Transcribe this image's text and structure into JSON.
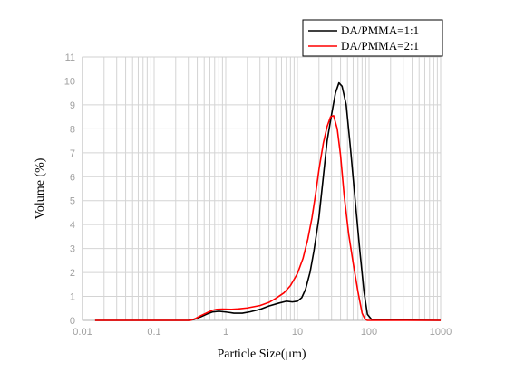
{
  "chart_data": {
    "type": "line",
    "xscale": "log",
    "xlabel": "Particle Size(μm)",
    "ylabel": "Volume (%)",
    "xlim": [
      0.01,
      1000
    ],
    "ylim": [
      0,
      11
    ],
    "grid": true,
    "legend_position": "top-right",
    "x_ticks": [
      0.01,
      0.1,
      1,
      10,
      100,
      1000
    ],
    "x_tick_labels": [
      "0.01",
      "0.1",
      "1",
      "10",
      "100",
      "1000"
    ],
    "y_ticks": [
      0,
      1,
      2,
      3,
      4,
      5,
      6,
      7,
      8,
      9,
      10,
      11
    ],
    "y_tick_labels": [
      "0",
      "1",
      "2",
      "3",
      "4",
      "5",
      "6",
      "7",
      "8",
      "9",
      "10",
      "11"
    ],
    "series": [
      {
        "name": "DA/PMMA=1:1",
        "color": "#000000",
        "points": [
          [
            0.015,
            0
          ],
          [
            0.3,
            0
          ],
          [
            0.35,
            0.03
          ],
          [
            0.45,
            0.15
          ],
          [
            0.55,
            0.27
          ],
          [
            0.65,
            0.35
          ],
          [
            0.8,
            0.38
          ],
          [
            1.0,
            0.35
          ],
          [
            1.3,
            0.3
          ],
          [
            1.7,
            0.3
          ],
          [
            2.2,
            0.36
          ],
          [
            3.0,
            0.46
          ],
          [
            4.0,
            0.6
          ],
          [
            5.5,
            0.72
          ],
          [
            7.0,
            0.8
          ],
          [
            8.5,
            0.77
          ],
          [
            10,
            0.8
          ],
          [
            11.5,
            0.95
          ],
          [
            13,
            1.3
          ],
          [
            15,
            2.0
          ],
          [
            17,
            2.9
          ],
          [
            20,
            4.3
          ],
          [
            23,
            6.0
          ],
          [
            26,
            7.5
          ],
          [
            30,
            8.6
          ],
          [
            34,
            9.5
          ],
          [
            38,
            9.92
          ],
          [
            42,
            9.78
          ],
          [
            48,
            9.0
          ],
          [
            55,
            7.2
          ],
          [
            65,
            4.8
          ],
          [
            75,
            2.8
          ],
          [
            85,
            1.2
          ],
          [
            95,
            0.25
          ],
          [
            110,
            0.02
          ],
          [
            1000,
            0
          ]
        ]
      },
      {
        "name": "DA/PMMA=2:1",
        "color": "#ff0000",
        "points": [
          [
            0.015,
            0
          ],
          [
            0.32,
            0
          ],
          [
            0.38,
            0.08
          ],
          [
            0.45,
            0.2
          ],
          [
            0.55,
            0.32
          ],
          [
            0.65,
            0.42
          ],
          [
            0.75,
            0.46
          ],
          [
            0.9,
            0.47
          ],
          [
            1.2,
            0.46
          ],
          [
            1.5,
            0.48
          ],
          [
            2.0,
            0.52
          ],
          [
            3.0,
            0.62
          ],
          [
            4.0,
            0.75
          ],
          [
            5.0,
            0.92
          ],
          [
            6.5,
            1.15
          ],
          [
            8.0,
            1.45
          ],
          [
            10,
            1.95
          ],
          [
            12,
            2.6
          ],
          [
            14,
            3.4
          ],
          [
            16,
            4.3
          ],
          [
            18,
            5.3
          ],
          [
            20,
            6.3
          ],
          [
            23,
            7.4
          ],
          [
            26,
            8.1
          ],
          [
            29,
            8.5
          ],
          [
            32,
            8.55
          ],
          [
            36,
            8.0
          ],
          [
            40,
            6.9
          ],
          [
            45,
            5.2
          ],
          [
            52,
            3.6
          ],
          [
            60,
            2.4
          ],
          [
            70,
            1.2
          ],
          [
            80,
            0.3
          ],
          [
            88,
            0.05
          ],
          [
            95,
            0
          ],
          [
            1000,
            0
          ]
        ]
      }
    ]
  }
}
